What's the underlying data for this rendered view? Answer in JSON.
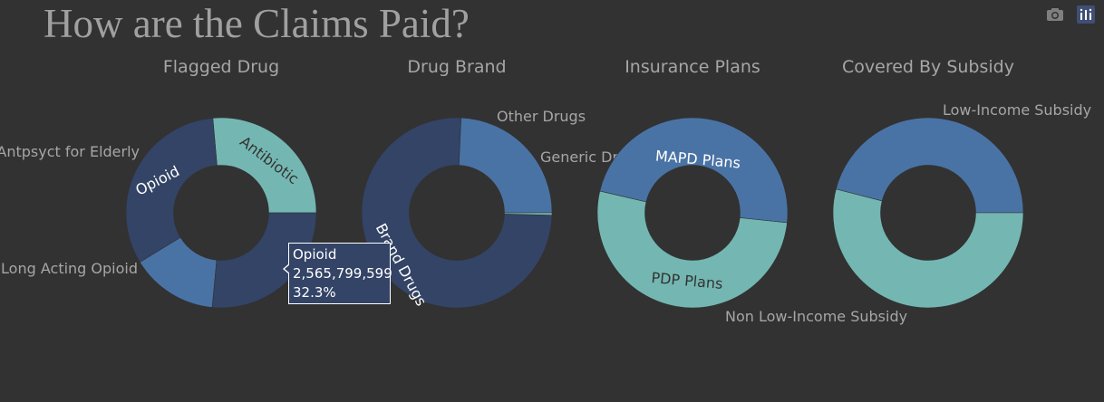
{
  "title": "How are the Claims Paid?",
  "modebar": {
    "camera_icon": "camera-icon",
    "plotly_icon": "plotly-logo-icon"
  },
  "colors": {
    "dark": "#334466",
    "mid": "#4a73a5",
    "teal": "#74b7b2",
    "background": "#323232"
  },
  "chart_data": [
    {
      "type": "pie",
      "hole": 0.5,
      "title": "Flagged Drug",
      "slices": [
        {
          "label": "Antibiotic",
          "value": 26.4,
          "color": "#74b7b2",
          "label_pos": "inside"
        },
        {
          "label": "Opioid",
          "value": 32.3,
          "color": "#334466",
          "label_pos": "inside"
        },
        {
          "label": "Long Acting Opioid",
          "value": 14.8,
          "color": "#4a73a5",
          "label_pos": "outside"
        },
        {
          "label": "Antpsyct for Elderly",
          "value": 26.5,
          "color": "#334466",
          "label_pos": "outside"
        }
      ]
    },
    {
      "type": "pie",
      "hole": 0.5,
      "title": "Drug Brand",
      "slices": [
        {
          "label": "Generic Drugs",
          "value": 24.3,
          "color": "#4a73a5",
          "label_pos": "outside"
        },
        {
          "label": "Brand Drugs",
          "value": 75.3,
          "color": "#334466",
          "label_pos": "inside"
        },
        {
          "label": "Other Drugs",
          "value": 0.4,
          "color": "#74b7b2",
          "label_pos": "outside"
        }
      ]
    },
    {
      "type": "pie",
      "hole": 0.5,
      "title": "Insurance Plans",
      "slices": [
        {
          "label": "MAPD Plans",
          "value": 48,
          "color": "#4a73a5",
          "label_pos": "inside"
        },
        {
          "label": "PDP Plans",
          "value": 52,
          "color": "#74b7b2",
          "label_pos": "inside"
        }
      ]
    },
    {
      "type": "pie",
      "hole": 0.5,
      "title": "Covered By Subsidy",
      "slices": [
        {
          "label": "Low-Income Subsidy",
          "value": 46,
          "color": "#4a73a5",
          "label_pos": "outside"
        },
        {
          "label": "Non Low-Income Subsidy",
          "value": 54,
          "color": "#74b7b2",
          "label_pos": "outside"
        }
      ]
    }
  ],
  "tooltip": {
    "label": "Opioid",
    "value": "2,565,799,599",
    "percent": "32.3%"
  }
}
